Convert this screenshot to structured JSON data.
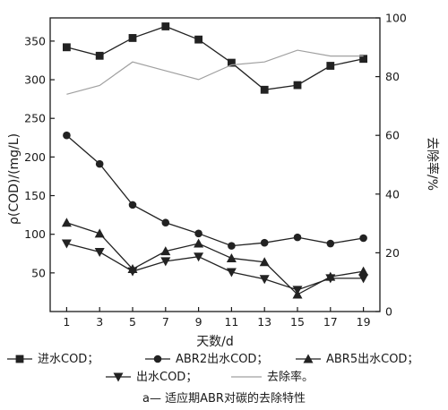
{
  "chart_data": {
    "type": "line",
    "x": [
      1,
      3,
      5,
      7,
      9,
      11,
      13,
      15,
      17,
      19
    ],
    "xlabel": "天数/d",
    "xlim": [
      0,
      20
    ],
    "xticks": [
      "1",
      "3",
      "5",
      "7",
      "9",
      "11",
      "13",
      "15",
      "17",
      "19"
    ],
    "ylabel_left": "ρ(COD)/(mg/L)",
    "ylim_left": [
      0,
      380
    ],
    "yticks_left": [
      "50",
      "100",
      "150",
      "200",
      "250",
      "300",
      "350"
    ],
    "ylabel_right": "去除率/%",
    "ylim_right": [
      0,
      100
    ],
    "yticks_right": [
      "0",
      "20",
      "40",
      "60",
      "80",
      "100"
    ],
    "grid": false,
    "series": [
      {
        "name": "进水COD",
        "axis": "left",
        "marker": "square",
        "values": [
          342,
          331,
          354,
          369,
          352,
          322,
          287,
          293,
          318,
          327
        ]
      },
      {
        "name": "ABR2出水COD",
        "axis": "left",
        "marker": "circle",
        "values": [
          228,
          191,
          138,
          115,
          101,
          85,
          89,
          96,
          88,
          95
        ]
      },
      {
        "name": "ABR5出水COD",
        "axis": "left",
        "marker": "triangle-up",
        "values": [
          115,
          101,
          55,
          78,
          88,
          69,
          64,
          22,
          45,
          52
        ]
      },
      {
        "name": "出水COD",
        "axis": "left",
        "marker": "triangle-down",
        "values": [
          88,
          77,
          52,
          65,
          71,
          51,
          42,
          28,
          43,
          43
        ]
      },
      {
        "name": "去除率",
        "axis": "right",
        "marker": "none",
        "values": [
          74,
          77,
          85,
          82,
          79,
          84,
          85,
          89,
          87,
          87
        ]
      }
    ],
    "legend": {
      "row1": [
        "进水COD；",
        "ABR2出水COD；",
        "ABR5出水COD；"
      ],
      "row2": [
        "出水COD；",
        "去除率。"
      ]
    },
    "caption": "a— 适应期ABR对碳的去除特性"
  },
  "colors": {
    "axis": "#1a1a1a",
    "series": "#222222",
    "removal_line": "#a0a0a0"
  }
}
